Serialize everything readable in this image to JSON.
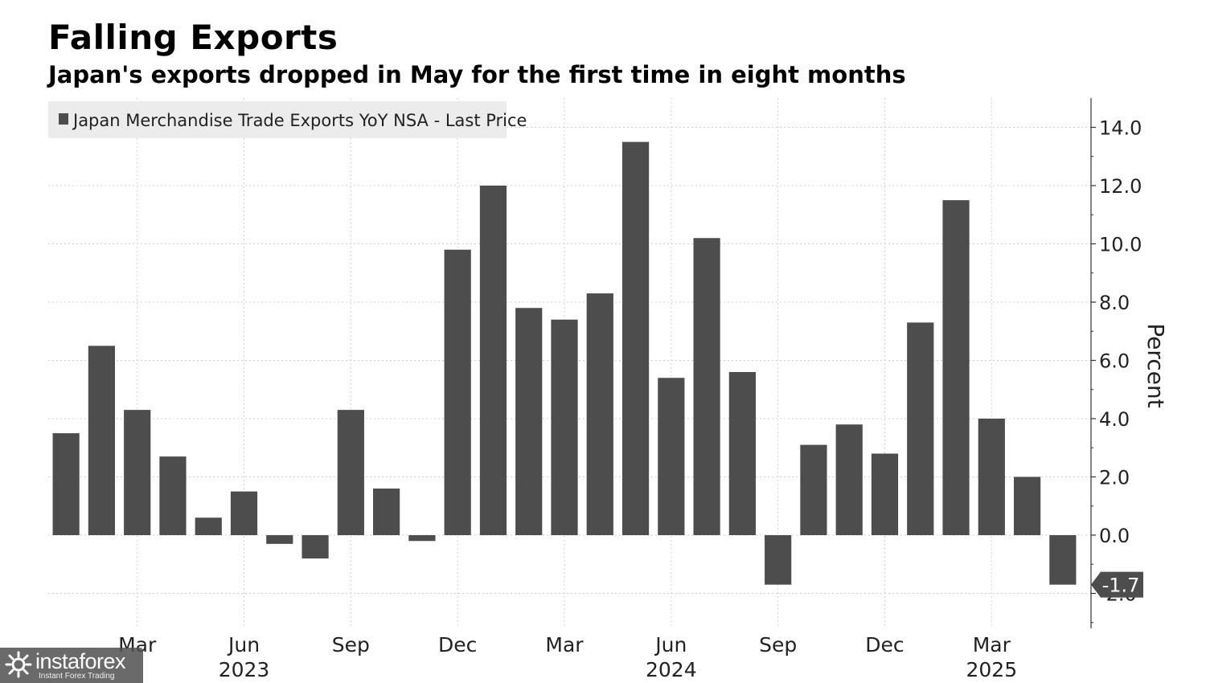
{
  "header": {
    "title": "Falling Exports",
    "subtitle": "Japan's exports dropped in May for the first time in eight months"
  },
  "watermark": {
    "brand": "instaforex",
    "tagline": "Instant Forex Trading",
    "icon": "instaforex-logo-icon"
  },
  "colors": {
    "bar": "#4d4d4d",
    "grid": "#cfcfcf",
    "legend_bg": "#ececec",
    "label_box": "#4d4d4d"
  },
  "chart_data": {
    "type": "bar",
    "legend": {
      "label": "Japan Merchandise Trade Exports YoY NSA - Last Price",
      "placement": "top-left"
    },
    "categories": [
      "2023-01",
      "2023-02",
      "2023-03",
      "2023-04",
      "2023-05",
      "2023-06",
      "2023-07",
      "2023-08",
      "2023-09",
      "2023-10",
      "2023-11",
      "2023-12",
      "2024-01",
      "2024-02",
      "2024-03",
      "2024-04",
      "2024-05",
      "2024-06",
      "2024-07",
      "2024-08",
      "2024-09",
      "2024-10",
      "2024-11",
      "2024-12",
      "2025-01",
      "2025-02",
      "2025-03",
      "2025-04",
      "2025-05"
    ],
    "values": [
      3.5,
      6.5,
      4.3,
      2.7,
      0.6,
      1.5,
      -0.3,
      -0.8,
      4.3,
      1.6,
      -0.2,
      9.8,
      12.0,
      7.8,
      7.4,
      8.3,
      13.5,
      5.4,
      10.2,
      5.6,
      -1.7,
      3.1,
      3.8,
      2.8,
      7.3,
      11.5,
      4.0,
      2.0,
      -1.7
    ],
    "last_value_label": "-1.7",
    "x_ticks": [
      {
        "label": "Mar",
        "index": 2
      },
      {
        "label": "Jun",
        "index": 5
      },
      {
        "label": "Sep",
        "index": 8
      },
      {
        "label": "Dec",
        "index": 11
      },
      {
        "label": "Mar",
        "index": 14
      },
      {
        "label": "Jun",
        "index": 17
      },
      {
        "label": "Sep",
        "index": 20
      },
      {
        "label": "Dec",
        "index": 23
      },
      {
        "label": "Mar",
        "index": 26
      }
    ],
    "x_year_labels": [
      {
        "label": "2023",
        "index": 5
      },
      {
        "label": "2024",
        "index": 17
      },
      {
        "label": "2025",
        "index": 26
      }
    ],
    "y_ticks": [
      "14.0",
      "12.0",
      "10.0",
      "8.0",
      "6.0",
      "4.0",
      "2.0",
      "0.0",
      "-2.0"
    ],
    "ylabel": "Percent",
    "ylim": [
      -3.2,
      15.0
    ],
    "grid": true,
    "y_axis_side": "right"
  }
}
